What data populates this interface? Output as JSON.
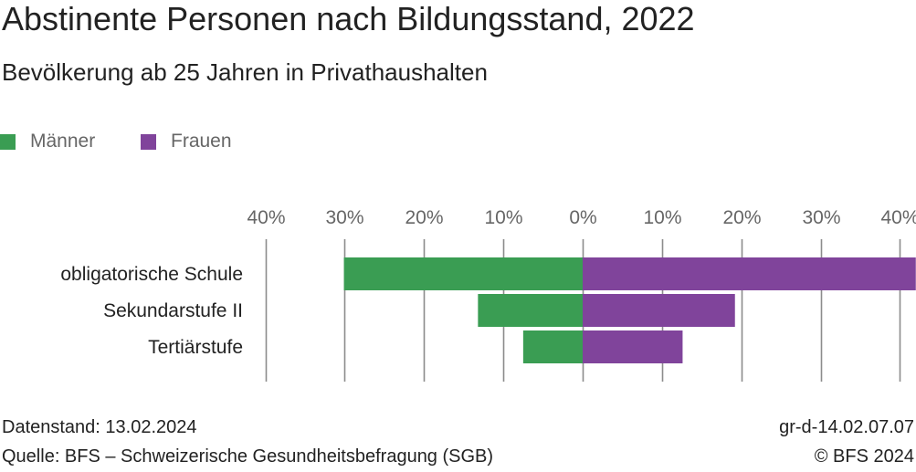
{
  "title": "Abstinente Personen nach Bildungsstand, 2022",
  "subtitle": "Bevölkerung ab 25 Jahren in Privathaushalten",
  "legend": [
    {
      "label": "Männer",
      "color": "#3a9d53"
    },
    {
      "label": "Frauen",
      "color": "#80449b"
    }
  ],
  "footer": {
    "date": "Datenstand: 13.02.2024",
    "source": "Quelle: BFS – Schweizerische Gesundheitsbefragung (SGB)",
    "code": "gr-d-14.02.07.07",
    "copyright": "© BFS 2024"
  },
  "chart_data": {
    "type": "bar",
    "orientation": "horizontal",
    "layout": "population-pyramid",
    "categories": [
      "obligatorische Schule",
      "Sekundarstufe II",
      "Tertiärstufe"
    ],
    "series": [
      {
        "name": "Männer",
        "color": "#3a9d53",
        "side": "left",
        "values": [
          30.1,
          13.2,
          7.5
        ]
      },
      {
        "name": "Frauen",
        "color": "#80449b",
        "side": "right",
        "values": [
          42.0,
          19.2,
          12.6
        ]
      }
    ],
    "xlim": [
      -40,
      42
    ],
    "ticks": [
      -40,
      -30,
      -20,
      -10,
      0,
      10,
      20,
      30,
      40
    ],
    "tick_labels": [
      "40%",
      "30%",
      "20%",
      "10%",
      "0%",
      "10%",
      "20%",
      "30%",
      "40%"
    ],
    "grid": true,
    "legend_position": "top-left"
  }
}
